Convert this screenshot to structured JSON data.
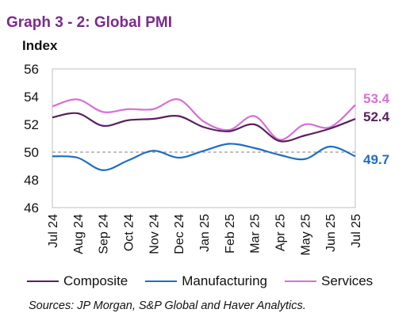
{
  "title": "Graph 3 - 2: Global PMI",
  "source": "Sources: JP Morgan, S&P Global and Haver Analytics.",
  "chart_data": {
    "type": "line",
    "ylabel": "Index",
    "xlabel": "",
    "ylim": [
      46,
      56
    ],
    "yticks": [
      46,
      48,
      50,
      52,
      54,
      56
    ],
    "categories": [
      "Jul 24",
      "Aug 24",
      "Sep 24",
      "Oct 24",
      "Nov 24",
      "Dec 24",
      "Jan 25",
      "Feb 25",
      "Mar 25",
      "Apr 25",
      "May 25",
      "Jun 25",
      "Jul 25"
    ],
    "reference_line": 50,
    "grid": false,
    "legend_position": "bottom",
    "series": [
      {
        "name": "Composite",
        "color": "#5a1f5e",
        "values": [
          52.5,
          52.8,
          51.9,
          52.3,
          52.4,
          52.6,
          51.8,
          51.5,
          52.0,
          50.8,
          51.2,
          51.7,
          52.4
        ],
        "end_label": "52.4"
      },
      {
        "name": "Manufacturing",
        "color": "#1f6fc0",
        "values": [
          49.7,
          49.6,
          48.7,
          49.4,
          50.1,
          49.6,
          50.1,
          50.6,
          50.3,
          49.8,
          49.5,
          50.4,
          49.7
        ],
        "end_label": "49.7"
      },
      {
        "name": "Services",
        "color": "#d670d6",
        "values": [
          53.3,
          53.8,
          52.9,
          53.1,
          53.1,
          53.8,
          52.2,
          51.6,
          52.6,
          50.9,
          52.0,
          51.8,
          53.4
        ],
        "end_label": "53.4"
      }
    ]
  }
}
